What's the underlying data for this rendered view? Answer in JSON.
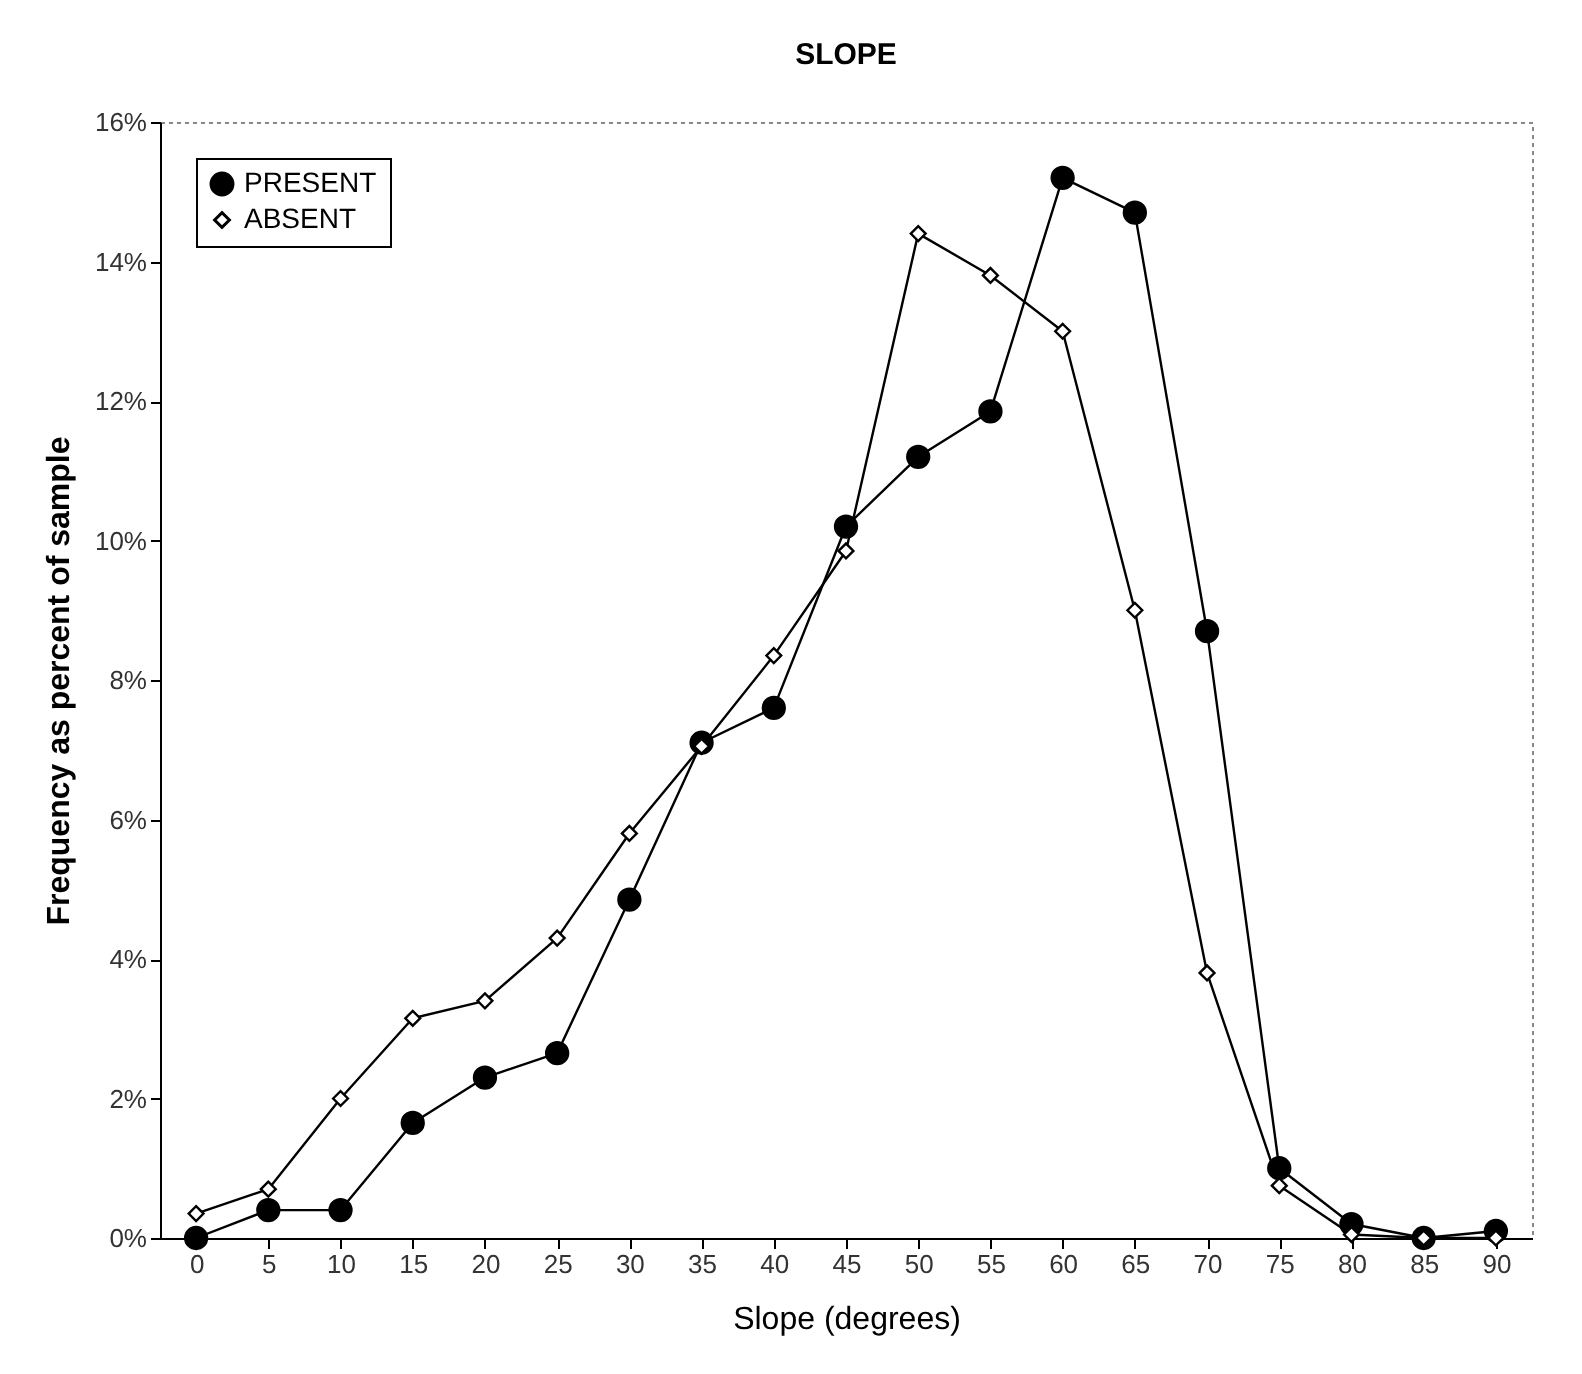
{
  "chart_data": {
    "type": "line",
    "title": "SLOPE",
    "xlabel": "Slope (degrees)",
    "ylabel": "Frequency as percent of sample",
    "categories": [
      "0",
      "5",
      "10",
      "15",
      "20",
      "25",
      "30",
      "35",
      "40",
      "45",
      "50",
      "55",
      "60",
      "65",
      "70",
      "75",
      "80",
      "85",
      "90"
    ],
    "series": [
      {
        "name": "PRESENT",
        "color": "#000000",
        "marker": "circle",
        "values": [
          0.0,
          0.4,
          0.4,
          1.65,
          2.3,
          2.65,
          4.85,
          7.1,
          7.6,
          10.2,
          11.2,
          11.85,
          15.2,
          14.7,
          8.7,
          1.0,
          0.2,
          0.0,
          0.1
        ]
      },
      {
        "name": "ABSENT",
        "color": "#000000",
        "marker": "diamond",
        "values": [
          0.35,
          0.7,
          2.0,
          3.15,
          3.4,
          4.3,
          5.8,
          7.05,
          8.35,
          9.85,
          14.4,
          13.8,
          13.0,
          9.0,
          3.8,
          0.75,
          0.05,
          0.0,
          0.0
        ]
      }
    ],
    "ylim": [
      0,
      16
    ],
    "yticks": [
      {
        "value": 0,
        "label": "0%"
      },
      {
        "value": 2,
        "label": "2%"
      },
      {
        "value": 4,
        "label": "4%"
      },
      {
        "value": 6,
        "label": "6%"
      },
      {
        "value": 8,
        "label": "8%"
      },
      {
        "value": 10,
        "label": "10%"
      },
      {
        "value": 12,
        "label": "12%"
      },
      {
        "value": 14,
        "label": "14%"
      },
      {
        "value": 16,
        "label": "16%"
      }
    ],
    "grid": false,
    "legend": "top left",
    "line_style": "solid"
  }
}
